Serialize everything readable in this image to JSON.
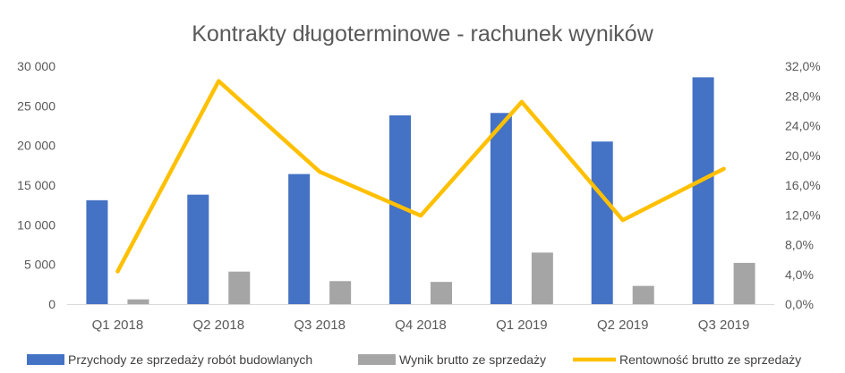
{
  "chart_data": {
    "type": "bar",
    "title": "Kontrakty długoterminowe - rachunek wyników",
    "xlabel": "",
    "ylabel": "",
    "categories": [
      "Q1 2018",
      "Q2 2018",
      "Q3 2018",
      "Q4 2018",
      "Q1 2019",
      "Q2 2019",
      "Q3 2019"
    ],
    "ylim": [
      0,
      30000
    ],
    "y_ticks": [
      "0",
      "5 000",
      "10 000",
      "15 000",
      "20 000",
      "25 000",
      "30 000"
    ],
    "y2lim": [
      0,
      32
    ],
    "y2_ticks": [
      "0,0%",
      "4,0%",
      "8,0%",
      "12,0%",
      "16,0%",
      "20,0%",
      "24,0%",
      "28,0%",
      "32,0%"
    ],
    "grid": false,
    "legend": "bottom",
    "series": [
      {
        "name": "Przychody ze sprzedaży robót budowlanych",
        "type": "bar",
        "axis": "left",
        "color": "#4472C4",
        "values": [
          13100,
          13800,
          16400,
          23800,
          24100,
          20500,
          28600
        ]
      },
      {
        "name": "Wynik brutto ze sprzedaży",
        "type": "bar",
        "axis": "left",
        "color": "#A5A5A5",
        "values": [
          600,
          4100,
          2900,
          2800,
          6500,
          2300,
          5200
        ]
      },
      {
        "name": "Rentowność brutto ze sprzedaży",
        "type": "line",
        "axis": "right",
        "unit": "%",
        "color": "#FFC000",
        "values": [
          4.4,
          30.0,
          17.8,
          11.9,
          27.2,
          11.3,
          18.2
        ]
      }
    ]
  }
}
